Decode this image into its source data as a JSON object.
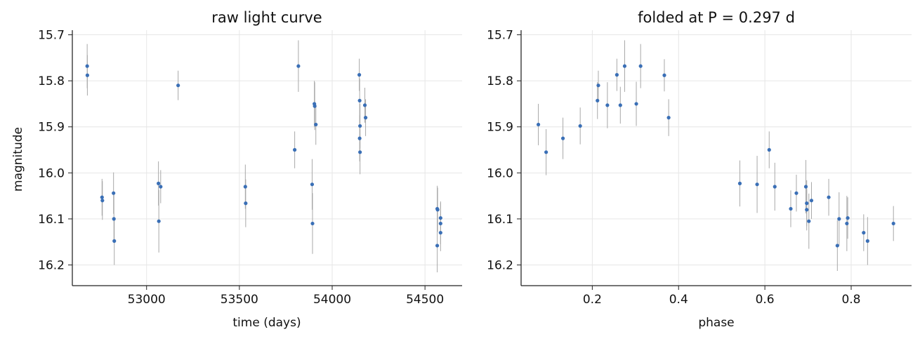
{
  "colors": {
    "points": "#3a6fb6",
    "errorbars": "#a8a8a8",
    "grid": "#e6e6e6",
    "axes": "#222222"
  },
  "chart_data": [
    {
      "type": "scatter",
      "title": "raw light curve",
      "xlabel": "time (days)",
      "ylabel": "magnitude",
      "xlim": [
        52600,
        54700
      ],
      "ylim": [
        16.245,
        15.69
      ],
      "y_inverted": true,
      "grid": true,
      "xticks": [
        53000,
        53500,
        54000,
        54500
      ],
      "xtick_labels": [
        "53000",
        "53500",
        "54000",
        "54500"
      ],
      "yticks": [
        15.7,
        15.8,
        15.9,
        16.0,
        16.1,
        16.2
      ],
      "ytick_labels": [
        "15.7",
        "15.8",
        "15.9",
        "16.0",
        "16.1",
        "16.2"
      ],
      "points": [
        {
          "x": 52680,
          "y": 15.768,
          "err": 0.048
        },
        {
          "x": 52681,
          "y": 15.788,
          "err": 0.044
        },
        {
          "x": 52760,
          "y": 16.053,
          "err": 0.04
        },
        {
          "x": 52762,
          "y": 16.06,
          "err": 0.042
        },
        {
          "x": 52822,
          "y": 16.044,
          "err": 0.045
        },
        {
          "x": 52824,
          "y": 16.1,
          "err": 0.052
        },
        {
          "x": 52826,
          "y": 16.148,
          "err": 0.052
        },
        {
          "x": 53064,
          "y": 16.023,
          "err": 0.048
        },
        {
          "x": 53066,
          "y": 16.105,
          "err": 0.068
        },
        {
          "x": 53076,
          "y": 16.03,
          "err": 0.036
        },
        {
          "x": 53170,
          "y": 15.81,
          "err": 0.032
        },
        {
          "x": 53532,
          "y": 16.03,
          "err": 0.048
        },
        {
          "x": 53534,
          "y": 16.066,
          "err": 0.052
        },
        {
          "x": 53798,
          "y": 15.95,
          "err": 0.04
        },
        {
          "x": 53818,
          "y": 15.768,
          "err": 0.056
        },
        {
          "x": 53892,
          "y": 16.025,
          "err": 0.055
        },
        {
          "x": 53894,
          "y": 16.11,
          "err": 0.066
        },
        {
          "x": 53904,
          "y": 15.85,
          "err": 0.05
        },
        {
          "x": 53906,
          "y": 15.855,
          "err": 0.052
        },
        {
          "x": 53912,
          "y": 15.895,
          "err": 0.044
        },
        {
          "x": 54146,
          "y": 15.787,
          "err": 0.035
        },
        {
          "x": 54148,
          "y": 15.843,
          "err": 0.048
        },
        {
          "x": 54150,
          "y": 15.898,
          "err": 0.048
        },
        {
          "x": 54148,
          "y": 15.925,
          "err": 0.05
        },
        {
          "x": 54150,
          "y": 15.955,
          "err": 0.048
        },
        {
          "x": 54176,
          "y": 15.853,
          "err": 0.038
        },
        {
          "x": 54180,
          "y": 15.88,
          "err": 0.04
        },
        {
          "x": 54566,
          "y": 16.078,
          "err": 0.05
        },
        {
          "x": 54568,
          "y": 16.08,
          "err": 0.048
        },
        {
          "x": 54566,
          "y": 16.158,
          "err": 0.058
        },
        {
          "x": 54584,
          "y": 16.098,
          "err": 0.036
        },
        {
          "x": 54584,
          "y": 16.11,
          "err": 0.045
        },
        {
          "x": 54584,
          "y": 16.13,
          "err": 0.04
        }
      ]
    },
    {
      "type": "scatter",
      "title": "folded at P = 0.297 d",
      "xlabel": "phase",
      "ylabel": "",
      "xlim": [
        0.035,
        0.94
      ],
      "ylim": [
        16.245,
        15.69
      ],
      "y_inverted": true,
      "grid": true,
      "xticks": [
        0.2,
        0.4,
        0.6,
        0.8
      ],
      "xtick_labels": [
        "0.2",
        "0.4",
        "0.6",
        "0.8"
      ],
      "yticks": [
        15.7,
        15.8,
        15.9,
        16.0,
        16.1,
        16.2
      ],
      "ytick_labels": [
        "15.7",
        "15.8",
        "15.9",
        "16.0",
        "16.1",
        "16.2"
      ],
      "points": [
        {
          "x": 0.075,
          "y": 15.895,
          "err": 0.045
        },
        {
          "x": 0.093,
          "y": 15.955,
          "err": 0.05
        },
        {
          "x": 0.132,
          "y": 15.925,
          "err": 0.045
        },
        {
          "x": 0.172,
          "y": 15.898,
          "err": 0.04
        },
        {
          "x": 0.212,
          "y": 15.843,
          "err": 0.04
        },
        {
          "x": 0.214,
          "y": 15.81,
          "err": 0.032
        },
        {
          "x": 0.235,
          "y": 15.853,
          "err": 0.05
        },
        {
          "x": 0.257,
          "y": 15.787,
          "err": 0.035
        },
        {
          "x": 0.265,
          "y": 15.853,
          "err": 0.04
        },
        {
          "x": 0.275,
          "y": 15.768,
          "err": 0.056
        },
        {
          "x": 0.302,
          "y": 15.85,
          "err": 0.048
        },
        {
          "x": 0.312,
          "y": 15.768,
          "err": 0.048
        },
        {
          "x": 0.367,
          "y": 15.788,
          "err": 0.035
        },
        {
          "x": 0.377,
          "y": 15.88,
          "err": 0.04
        },
        {
          "x": 0.542,
          "y": 16.023,
          "err": 0.05
        },
        {
          "x": 0.582,
          "y": 16.025,
          "err": 0.062
        },
        {
          "x": 0.61,
          "y": 15.95,
          "err": 0.04
        },
        {
          "x": 0.623,
          "y": 16.03,
          "err": 0.052
        },
        {
          "x": 0.66,
          "y": 16.078,
          "err": 0.04
        },
        {
          "x": 0.673,
          "y": 16.044,
          "err": 0.04
        },
        {
          "x": 0.695,
          "y": 16.03,
          "err": 0.058
        },
        {
          "x": 0.697,
          "y": 16.066,
          "err": 0.05
        },
        {
          "x": 0.697,
          "y": 16.08,
          "err": 0.045
        },
        {
          "x": 0.702,
          "y": 16.105,
          "err": 0.06
        },
        {
          "x": 0.708,
          "y": 16.06,
          "err": 0.04
        },
        {
          "x": 0.748,
          "y": 16.053,
          "err": 0.04
        },
        {
          "x": 0.768,
          "y": 16.158,
          "err": 0.055
        },
        {
          "x": 0.772,
          "y": 16.1,
          "err": 0.058
        },
        {
          "x": 0.79,
          "y": 16.11,
          "err": 0.06
        },
        {
          "x": 0.792,
          "y": 16.098,
          "err": 0.045
        },
        {
          "x": 0.829,
          "y": 16.13,
          "err": 0.04
        },
        {
          "x": 0.838,
          "y": 16.148,
          "err": 0.052
        },
        {
          "x": 0.898,
          "y": 16.11,
          "err": 0.038
        }
      ]
    }
  ]
}
